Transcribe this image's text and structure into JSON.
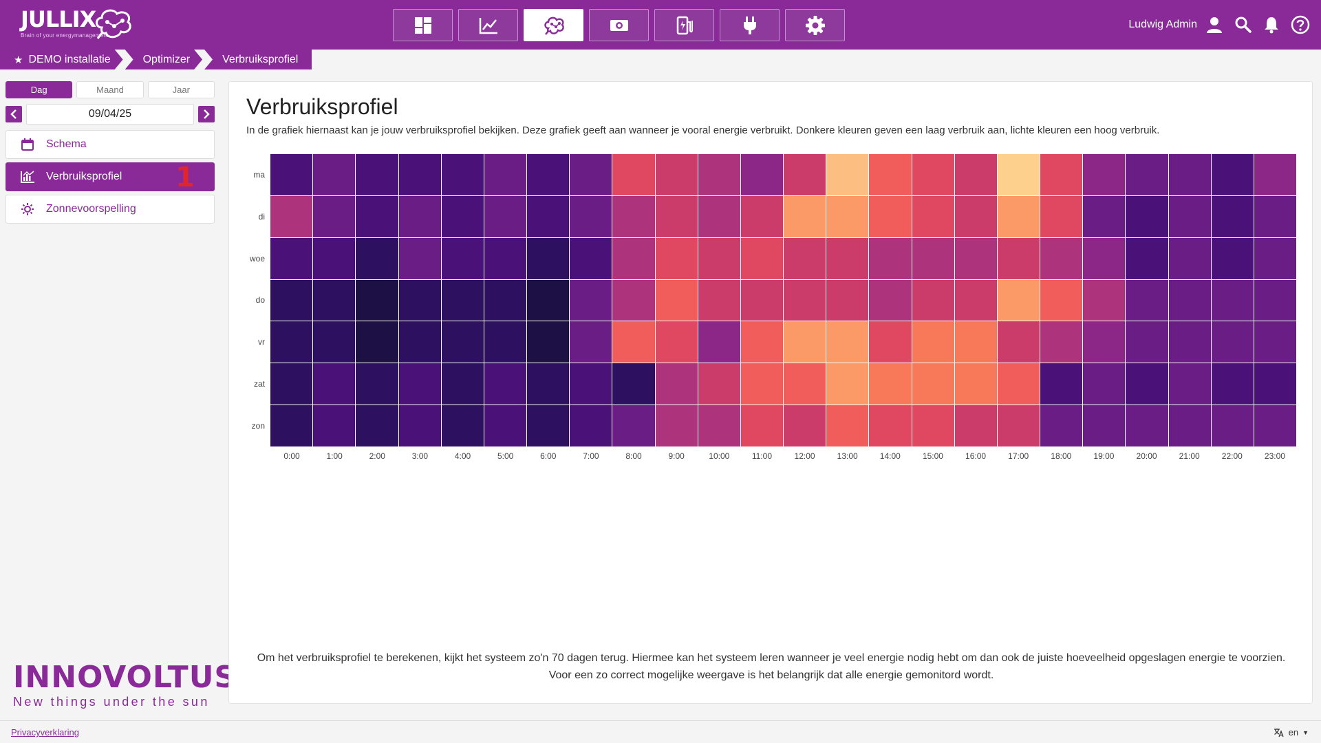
{
  "header": {
    "logo_text": "JULLIX",
    "logo_tagline": "Brain of your energymanagement",
    "nav": [
      {
        "icon": "dashboard-icon",
        "active": false
      },
      {
        "icon": "chart-line-icon",
        "active": false
      },
      {
        "icon": "brain-icon",
        "active": true
      },
      {
        "icon": "money-icon",
        "active": false
      },
      {
        "icon": "ev-charger-icon",
        "active": false
      },
      {
        "icon": "plug-icon",
        "active": false
      },
      {
        "icon": "gear-icon",
        "active": false
      }
    ],
    "username": "Ludwig Admin"
  },
  "breadcrumb": {
    "items": [
      "DEMO installatie",
      "Optimizer",
      "Verbruiksprofiel"
    ]
  },
  "sidebar": {
    "tabs": [
      "Dag",
      "Maand",
      "Jaar"
    ],
    "active_tab": "Dag",
    "date": "09/04/25",
    "menu": [
      {
        "label": "Schema",
        "icon": "calendar-icon",
        "active": false
      },
      {
        "label": "Verbruiksprofiel",
        "icon": "consumption-icon",
        "active": true,
        "marker": "1"
      },
      {
        "label": "Zonnevoorspelling",
        "icon": "sun-icon",
        "active": false
      }
    ]
  },
  "brand": {
    "name": "INNOVOLTUS",
    "tagline": "New things under the sun"
  },
  "main": {
    "title": "Verbruiksprofiel",
    "description": "In de grafiek hiernaast kan je jouw verbruiksprofiel bekijken. Deze grafiek geeft aan wanneer je vooral energie verbruikt. Donkere kleuren geven een laag verbruik aan, lichte kleuren een hoog verbruik.",
    "note_line1": "Om het verbruiksprofiel te berekenen, kijkt het systeem zo'n 70 dagen terug. Hiermee kan het systeem leren wanneer je veel energie nodig hebt om dan ook de juiste hoeveelheid opgeslagen energie te voorzien.",
    "note_line2": "Voor een zo correct mogelijke weergave is het belangrijk dat alle energie gemonitord wordt."
  },
  "chart_data": {
    "type": "heatmap",
    "x_categories": [
      "0:00",
      "1:00",
      "2:00",
      "3:00",
      "4:00",
      "5:00",
      "6:00",
      "7:00",
      "8:00",
      "9:00",
      "10:00",
      "11:00",
      "12:00",
      "13:00",
      "14:00",
      "15:00",
      "16:00",
      "17:00",
      "18:00",
      "19:00",
      "20:00",
      "21:00",
      "22:00",
      "23:00"
    ],
    "y_categories": [
      "ma",
      "di",
      "woe",
      "do",
      "vr",
      "zat",
      "zon"
    ],
    "scale_colors": [
      "#1c1044",
      "#2d1160",
      "#4a1279",
      "#6b1d86",
      "#8c2687",
      "#ad347c",
      "#cb3c6a",
      "#e04861",
      "#f15d5a",
      "#f8795a",
      "#fb9a66",
      "#fdbe82",
      "#fdd08e"
    ],
    "values": [
      [
        2,
        3,
        2,
        2,
        2,
        3,
        2,
        3,
        7,
        6,
        5,
        4,
        6,
        11,
        8,
        7,
        6,
        12,
        7,
        4,
        3,
        3,
        2,
        4
      ],
      [
        5,
        3,
        2,
        3,
        2,
        3,
        2,
        3,
        5,
        6,
        5,
        6,
        10,
        10,
        8,
        7,
        6,
        10,
        7,
        3,
        2,
        3,
        2,
        3
      ],
      [
        2,
        2,
        1,
        3,
        2,
        2,
        1,
        2,
        5,
        7,
        6,
        7,
        6,
        6,
        5,
        5,
        5,
        6,
        5,
        4,
        2,
        3,
        2,
        3
      ],
      [
        1,
        1,
        0,
        1,
        1,
        1,
        0,
        3,
        5,
        8,
        6,
        6,
        6,
        6,
        5,
        6,
        6,
        10,
        8,
        5,
        3,
        3,
        3,
        3
      ],
      [
        1,
        1,
        0,
        1,
        1,
        1,
        0,
        3,
        8,
        7,
        4,
        8,
        10,
        10,
        7,
        9,
        9,
        6,
        5,
        4,
        3,
        3,
        3,
        3
      ],
      [
        1,
        2,
        1,
        2,
        1,
        2,
        1,
        2,
        1,
        5,
        6,
        8,
        8,
        10,
        9,
        9,
        9,
        8,
        2,
        3,
        2,
        3,
        2,
        2
      ],
      [
        1,
        2,
        1,
        2,
        1,
        2,
        1,
        2,
        3,
        5,
        5,
        7,
        6,
        8,
        7,
        7,
        6,
        6,
        3,
        3,
        3,
        3,
        3,
        3
      ]
    ]
  },
  "footer": {
    "privacy": "Privacyverklaring",
    "language": "en"
  },
  "colors": {
    "brand": "#892a98",
    "marker": "#e3242b"
  }
}
